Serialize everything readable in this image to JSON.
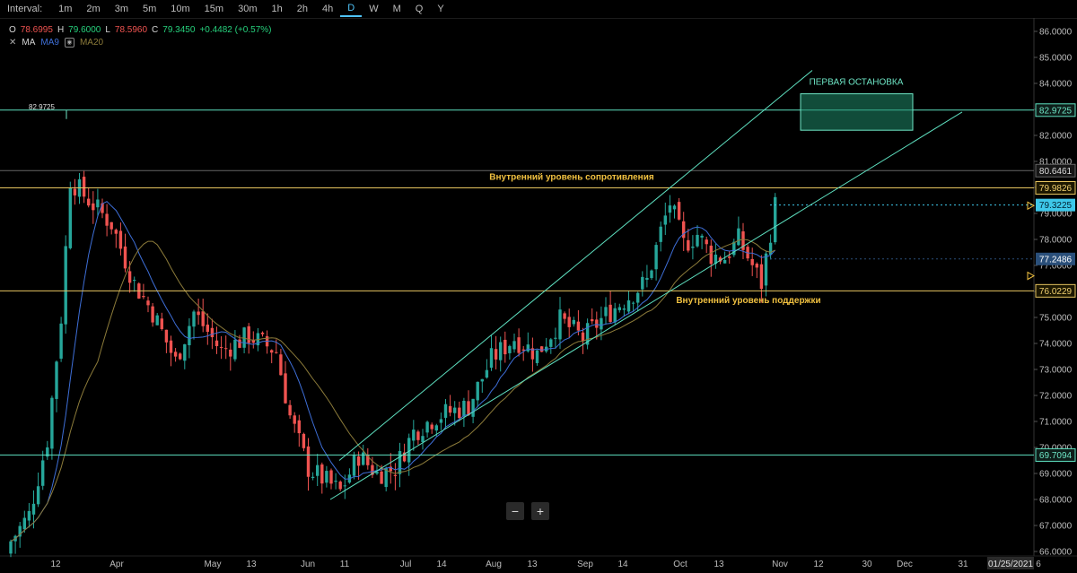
{
  "toolbar": {
    "interval_label": "Interval:",
    "intervals": [
      "1m",
      "2m",
      "3m",
      "5m",
      "10m",
      "15m",
      "30m",
      "1h",
      "2h",
      "4h",
      "D",
      "W",
      "M",
      "Q",
      "Y"
    ],
    "active": "D"
  },
  "ohlc": {
    "o_label": "O",
    "o": "78.6995",
    "h_label": "H",
    "h": "79.6000",
    "l_label": "L",
    "l": "78.5960",
    "c_label": "C",
    "c": "79.3450",
    "change": "+0.4482 (+0.57%)"
  },
  "ma": {
    "label": "MA",
    "ma9": "MA9",
    "ma20": "MA20"
  },
  "zoom": {
    "minus": "−",
    "plus": "+"
  },
  "chart_data": {
    "type": "candlestick",
    "ylim": [
      65.55,
      86.35
    ],
    "yticks": [
      "86.0000",
      "85.0000",
      "84.0000",
      "83.0000",
      "82.0000",
      "81.0000",
      "80.0000",
      "79.0000",
      "78.0000",
      "77.0000",
      "76.0000",
      "75.0000",
      "74.0000",
      "73.0000",
      "72.0000",
      "71.0000",
      "70.0000",
      "69.0000",
      "68.0000",
      "67.0000",
      "66.0000"
    ],
    "xticks": [
      "12",
      "Apr",
      "May",
      "13",
      "Jun",
      "11",
      "Jul",
      "14",
      "Aug",
      "13",
      "Sep",
      "14",
      "Oct",
      "13",
      "Nov",
      "12",
      "30",
      "Dec",
      "31",
      "6"
    ],
    "date_badge": "01/25/2021",
    "hlines": [
      {
        "label": "82.9725",
        "value": 82.9725,
        "color": "#5ee0c0",
        "badge_bg": "#0e1e1a",
        "badge_fg": "#6ee6c6"
      },
      {
        "label": "80.6461",
        "value": 80.6461,
        "color": "#666666",
        "badge_bg": "#161616",
        "badge_fg": "#dddddd"
      },
      {
        "label": "79.9826",
        "value": 79.9826,
        "color": "#e6c460",
        "badge_bg": "#1c1700",
        "badge_fg": "#f0d070"
      },
      {
        "label": "76.0229",
        "value": 76.0229,
        "color": "#e6c460",
        "badge_bg": "#1c1700",
        "badge_fg": "#f0d070"
      },
      {
        "label": "69.7094",
        "value": 69.7094,
        "color": "#5ee0c0",
        "badge_bg": "#0e1e1a",
        "badge_fg": "#6ee6c6"
      }
    ],
    "price_badges": [
      {
        "label": "79.3225",
        "value": 79.3225,
        "bg": "#3ec8ea",
        "fg": "#002030"
      },
      {
        "label": "77.2486",
        "value": 77.2486,
        "bg": "#2a4f7a",
        "fg": "#ffffff"
      }
    ],
    "left_price_label": "82.9725",
    "annotations": [
      {
        "text": "ПЕРВАЯ ОСТАНОВКА",
        "color": "#6ee6c6"
      },
      {
        "text": "Внутренний уровень сопротивления",
        "color": "#f0c040"
      },
      {
        "text": "Внутренний уровень поддержки",
        "color": "#f0c040"
      }
    ],
    "target_box": {
      "y_top": 83.6,
      "y_bottom": 82.2
    },
    "up_color": "#26a69a",
    "down_color": "#ef5350",
    "ma9_color": "#3e6fd8",
    "ma20_color": "#8c7b3a",
    "channel_color": "#5ee0c0"
  }
}
